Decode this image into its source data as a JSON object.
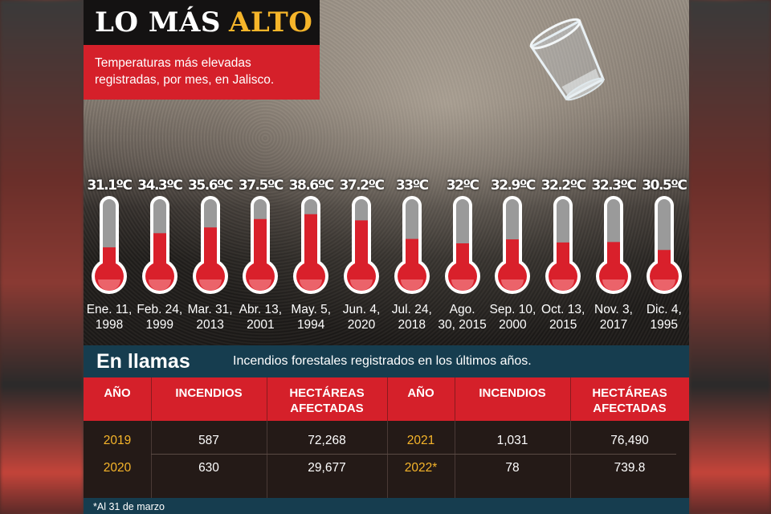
{
  "header": {
    "title_main": "LO MÁS",
    "title_accent": "ALTO",
    "subtitle_line1": "Temperaturas más elevadas",
    "subtitle_line2": "registradas, por mes, en Jalisco."
  },
  "colors": {
    "brand_red": "#d5202a",
    "accent_yellow": "#f6b52a",
    "teal_bar": "#163d4f",
    "mercury": "#d9202b"
  },
  "thermometers": [
    {
      "temp": "31.1ºC",
      "date_line1": "Ene. 11,",
      "date_line2": "1998",
      "value": 31.1
    },
    {
      "temp": "34.3ºC",
      "date_line1": "Feb. 24,",
      "date_line2": "1999",
      "value": 34.3
    },
    {
      "temp": "35.6ºC",
      "date_line1": "Mar. 31,",
      "date_line2": "2013",
      "value": 35.6
    },
    {
      "temp": "37.5ºC",
      "date_line1": "Abr. 13,",
      "date_line2": "2001",
      "value": 37.5
    },
    {
      "temp": "38.6ºC",
      "date_line1": "May. 5,",
      "date_line2": "1994",
      "value": 38.6
    },
    {
      "temp": "37.2ºC",
      "date_line1": "Jun. 4,",
      "date_line2": "2020",
      "value": 37.2
    },
    {
      "temp": "33ºC",
      "date_line1": "Jul. 24,",
      "date_line2": "2018",
      "value": 33
    },
    {
      "temp": "32ºC",
      "date_line1": "Ago.",
      "date_line2": "30, 2015",
      "value": 32
    },
    {
      "temp": "32.9ºC",
      "date_line1": "Sep. 10,",
      "date_line2": "2000",
      "value": 32.9
    },
    {
      "temp": "32.2ºC",
      "date_line1": "Oct. 13,",
      "date_line2": "2015",
      "value": 32.2
    },
    {
      "temp": "32.3ºC",
      "date_line1": "Nov. 3,",
      "date_line2": "2017",
      "value": 32.3
    },
    {
      "temp": "30.5ºC",
      "date_line1": "Dic. 4,",
      "date_line2": "1995",
      "value": 30.5
    }
  ],
  "fires": {
    "title": "En llamas",
    "subtitle": "Incendios forestales registrados en los últimos años.",
    "headers": {
      "year": "AÑO",
      "fires": "INCENDIOS",
      "hectares_line1": "HECTÁREAS",
      "hectares_line2": "AFECTADAS"
    },
    "left_rows": [
      {
        "year": "2019",
        "fires": "587",
        "hectares": "72,268"
      },
      {
        "year": "2020",
        "fires": "630",
        "hectares": "29,677"
      }
    ],
    "right_rows": [
      {
        "year": "2021",
        "fires": "1,031",
        "hectares": "76,490"
      },
      {
        "year": "2022*",
        "fires": "78",
        "hectares": "739.8"
      }
    ],
    "footnote": "*Al 31 de marzo"
  }
}
